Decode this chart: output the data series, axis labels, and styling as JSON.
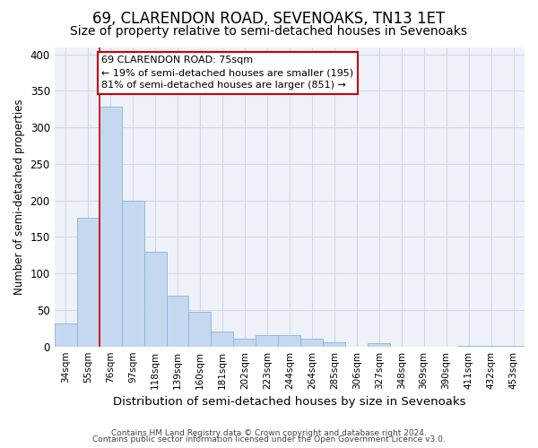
{
  "title": "69, CLARENDON ROAD, SEVENOAKS, TN13 1ET",
  "subtitle": "Size of property relative to semi-detached houses in Sevenoaks",
  "xlabel": "Distribution of semi-detached houses by size in Sevenoaks",
  "ylabel": "Number of semi-detached properties",
  "categories": [
    "34sqm",
    "55sqm",
    "76sqm",
    "97sqm",
    "118sqm",
    "139sqm",
    "160sqm",
    "181sqm",
    "202sqm",
    "223sqm",
    "244sqm",
    "264sqm",
    "285sqm",
    "306sqm",
    "327sqm",
    "348sqm",
    "369sqm",
    "390sqm",
    "411sqm",
    "432sqm",
    "453sqm"
  ],
  "values": [
    32,
    176,
    328,
    200,
    130,
    70,
    48,
    21,
    11,
    16,
    16,
    11,
    6,
    0,
    5,
    0,
    0,
    0,
    1,
    1,
    1
  ],
  "bar_color": "#c5d8ef",
  "bar_edge_color": "#8ab4d9",
  "vline_x": 2,
  "annotation_text": "69 CLARENDON ROAD: 75sqm\n← 19% of semi-detached houses are smaller (195)\n81% of semi-detached houses are larger (851) →",
  "annotation_box_facecolor": "#ffffff",
  "annotation_box_edgecolor": "#cc0000",
  "vline_color": "#cc0000",
  "grid_color": "#d0d8e8",
  "axes_bg_color": "#eef2f8",
  "ylim": [
    0,
    410
  ],
  "yticks": [
    0,
    50,
    100,
    150,
    200,
    250,
    300,
    350,
    400
  ],
  "footer1": "Contains HM Land Registry data © Crown copyright and database right 2024.",
  "footer2": "Contains public sector information licensed under the Open Government Licence v3.0.",
  "title_fontsize": 12,
  "subtitle_fontsize": 10,
  "tick_fontsize": 7.5,
  "ylabel_fontsize": 8.5,
  "xlabel_fontsize": 9.5,
  "annotation_fontsize": 8,
  "footer_fontsize": 6.5
}
